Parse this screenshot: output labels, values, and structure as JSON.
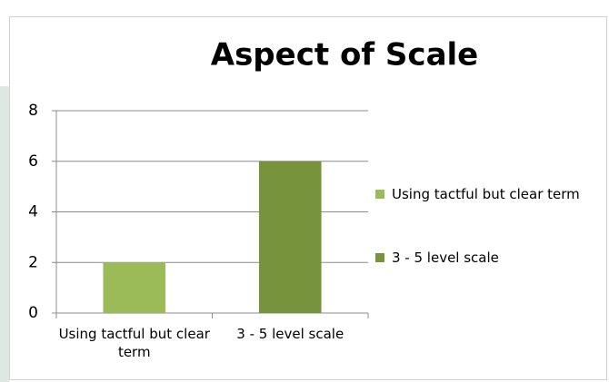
{
  "chart_data": {
    "type": "bar",
    "title": "Aspect of Scale",
    "categories": [
      "Using tactful but clear term",
      "3 - 5 level scale"
    ],
    "values": [
      2,
      6
    ],
    "colors": [
      "#9bbb59",
      "#77933c"
    ],
    "ylim": [
      0,
      8
    ],
    "yticks": [
      0,
      2,
      4,
      6,
      8
    ],
    "grid": true,
    "legend": "right"
  }
}
